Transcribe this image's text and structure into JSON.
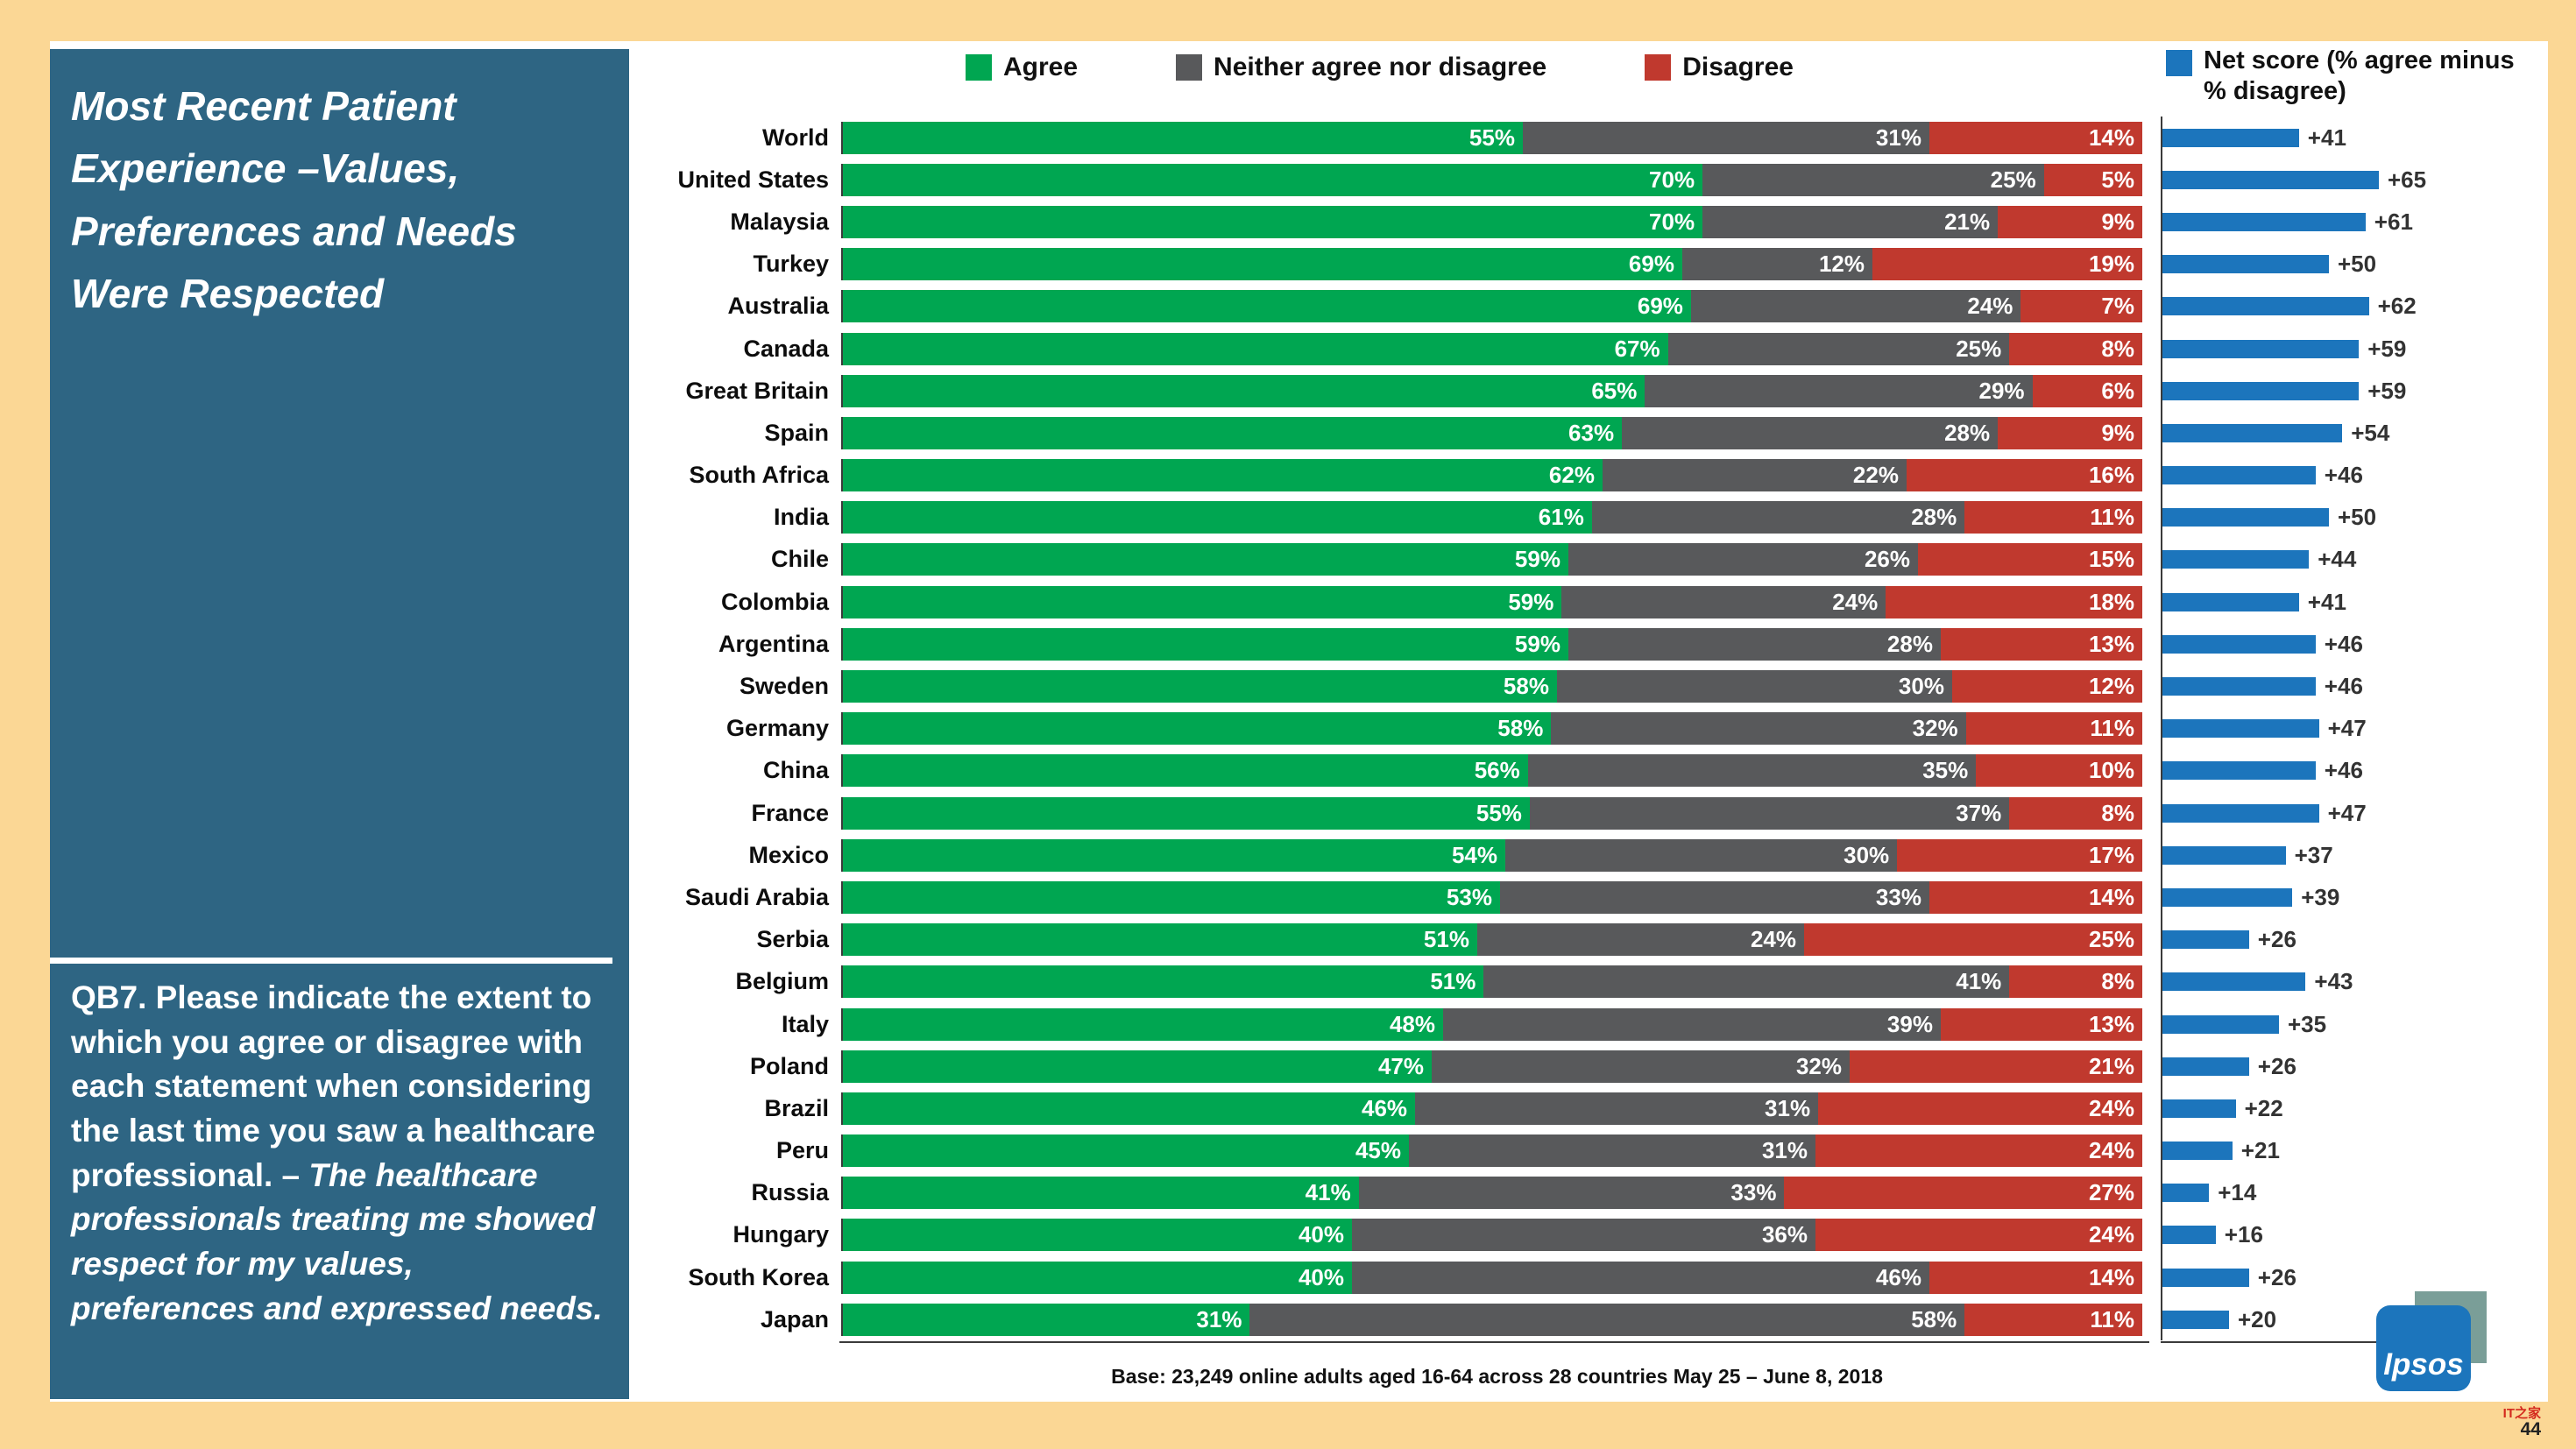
{
  "page": {
    "background": "#FBD795",
    "page_number": "44",
    "watermark": "IT之家"
  },
  "sidebar": {
    "background": "#2E6583",
    "title": "Most Recent Patient Experience –Values, Preferences and Needs Were Respected",
    "question_label": "QB7. Please indicate the extent to which you agree or disagree with each statement when considering the last time you saw a healthcare professional. – ",
    "question_statement": "The healthcare professionals treating me showed respect for my values, preferences and expressed needs."
  },
  "colors": {
    "agree": "#00A651",
    "neither": "#58595B",
    "disagree": "#C0392E",
    "net": "#1C75BC"
  },
  "legend": {
    "items": [
      {
        "key": "agree",
        "label": "Agree"
      },
      {
        "key": "neither",
        "label": "Neither agree nor disagree"
      },
      {
        "key": "disagree",
        "label": "Disagree"
      }
    ],
    "net_label": "Net score (% agree minus % disagree)"
  },
  "footer": {
    "base_note": "Base: 23,249 online adults aged 16-64 across 28 countries  May 25 – June 8, 2018",
    "logo": "Ipsos"
  },
  "chart_data": {
    "type": "bar",
    "orientation": "horizontal",
    "stacked": true,
    "unit": "%",
    "title": "Most Recent Patient Experience – Values, Preferences and Needs Were Respected",
    "legend_position": "top",
    "xlim": [
      0,
      100
    ],
    "categories": [
      "World",
      "United States",
      "Malaysia",
      "Turkey",
      "Australia",
      "Canada",
      "Great Britain",
      "Spain",
      "South Africa",
      "India",
      "Chile",
      "Colombia",
      "Argentina",
      "Sweden",
      "Germany",
      "China",
      "France",
      "Mexico",
      "Saudi Arabia",
      "Serbia",
      "Belgium",
      "Italy",
      "Poland",
      "Brazil",
      "Peru",
      "Russia",
      "Hungary",
      "South Korea",
      "Japan"
    ],
    "series": [
      {
        "name": "Agree",
        "values": [
          55,
          70,
          70,
          69,
          69,
          67,
          65,
          63,
          62,
          61,
          59,
          59,
          59,
          58,
          58,
          56,
          55,
          54,
          53,
          51,
          51,
          48,
          47,
          46,
          45,
          41,
          40,
          40,
          31
        ]
      },
      {
        "name": "Neither agree nor disagree",
        "values": [
          31,
          25,
          21,
          12,
          24,
          25,
          29,
          28,
          22,
          28,
          26,
          24,
          28,
          30,
          32,
          35,
          37,
          30,
          33,
          24,
          41,
          39,
          32,
          31,
          31,
          33,
          36,
          46,
          58
        ]
      },
      {
        "name": "Disagree",
        "values": [
          14,
          5,
          9,
          19,
          7,
          8,
          6,
          9,
          16,
          11,
          15,
          18,
          13,
          12,
          11,
          10,
          8,
          17,
          14,
          25,
          8,
          13,
          21,
          24,
          24,
          27,
          24,
          14,
          11
        ]
      }
    ],
    "net_score": [
      41,
      65,
      61,
      50,
      62,
      59,
      59,
      54,
      46,
      50,
      44,
      41,
      46,
      46,
      47,
      46,
      47,
      37,
      39,
      26,
      43,
      35,
      26,
      22,
      21,
      14,
      16,
      26,
      20
    ]
  }
}
